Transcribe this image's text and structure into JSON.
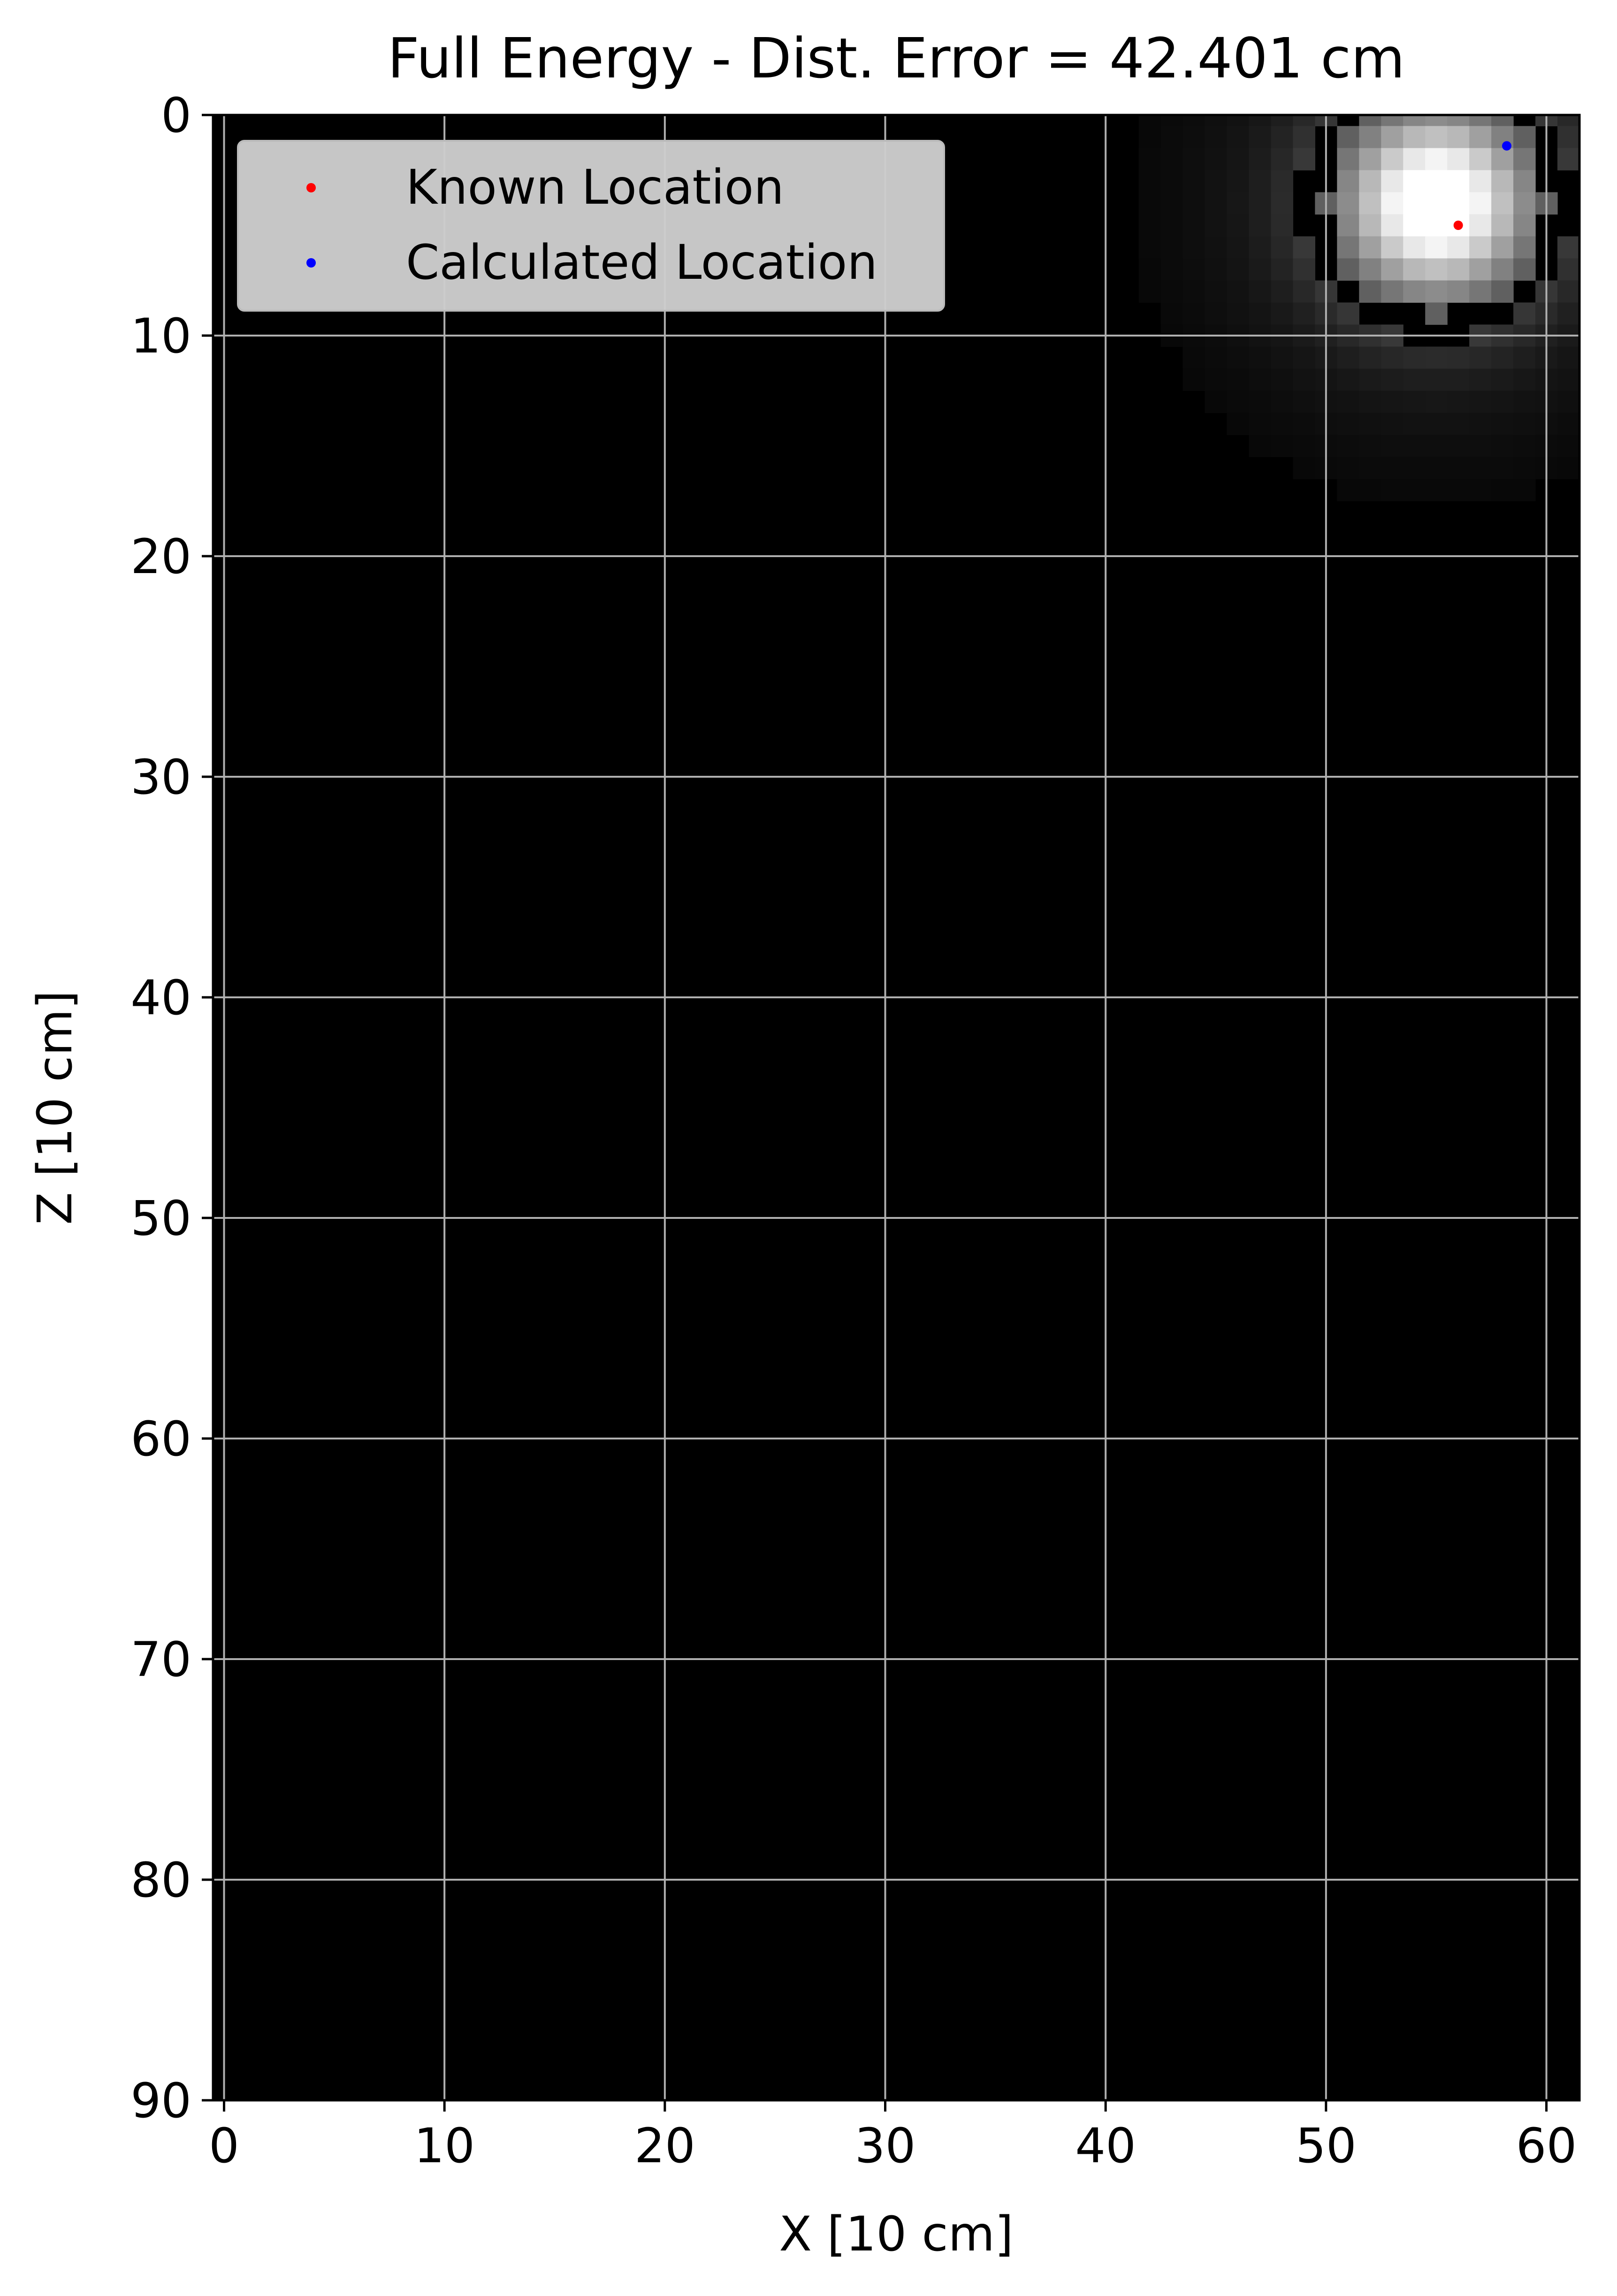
{
  "chart_data": {
    "type": "heatmap",
    "title": "Full Energy - Dist. Error = 42.401 cm",
    "xlabel": "X [10 cm]",
    "ylabel": "Z [10 cm]",
    "xlim": [
      -0.5,
      61.5
    ],
    "ylim": [
      90,
      0
    ],
    "y_inverted": true,
    "grid": true,
    "colormap": "gray",
    "xticks": [
      0,
      10,
      20,
      30,
      40,
      50,
      60
    ],
    "yticks": [
      0,
      10,
      20,
      30,
      40,
      50,
      60,
      70,
      80,
      90
    ],
    "xtick_labels": [
      "0",
      "10",
      "20",
      "30",
      "40",
      "50",
      "60"
    ],
    "ytick_labels": [
      "0",
      "10",
      "20",
      "30",
      "40",
      "50",
      "60",
      "70",
      "80",
      "90"
    ],
    "heatmap": {
      "grid_cols": 62,
      "grid_rows": 90,
      "peak_x": 55,
      "peak_z": 4,
      "peak_value": 1.0,
      "background_value": 0.0
    },
    "points": [
      {
        "name": "Known Location",
        "x": 56,
        "z": 5,
        "color": "#ff0000"
      },
      {
        "name": "Calculated Location",
        "x": 58.2,
        "z": 1.4,
        "color": "#0000ff"
      }
    ],
    "legend": {
      "location": "top-left",
      "entries": [
        {
          "label": "Known Location",
          "color": "#ff0000"
        },
        {
          "label": "Calculated Location",
          "color": "#0000ff"
        }
      ]
    }
  }
}
